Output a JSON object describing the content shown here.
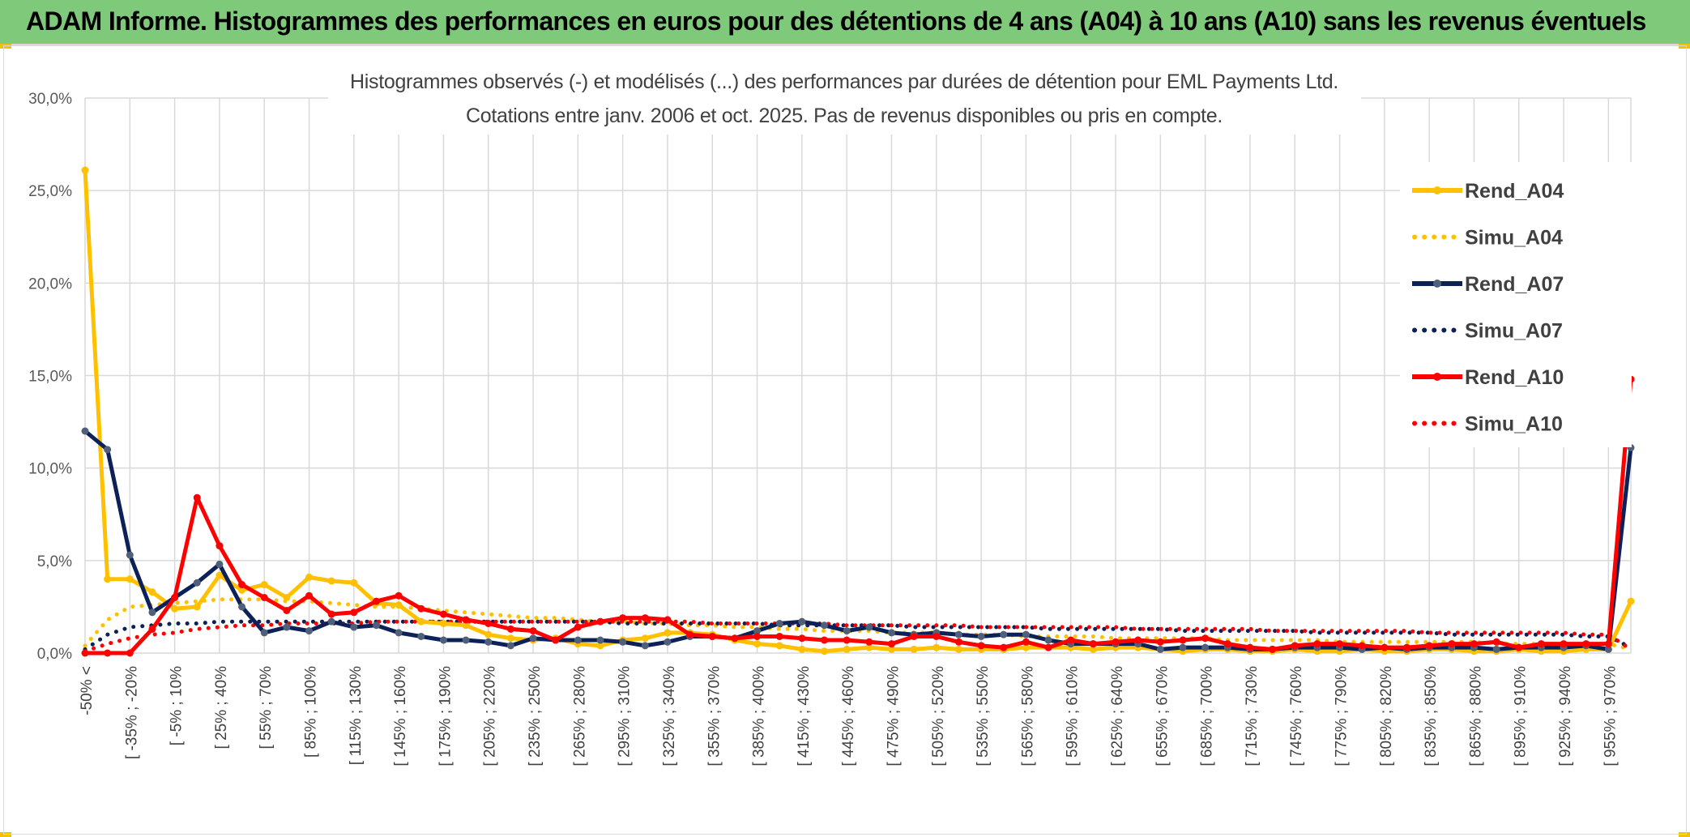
{
  "banner": {
    "title": "ADAM Informe. Histogrammes des performances en euros pour des détentions de 4 ans (A04) à 10 ans (A10) sans les revenus éventuels"
  },
  "chart_data": {
    "type": "line",
    "title": "Histogrammes observés (-) et modélisés (...) des performances par durées de détention pour EML Payments Ltd.",
    "subtitle": "Cotations entre janv. 2006 et oct. 2025. Pas de revenus disponibles ou pris en compte.",
    "xlabel": "",
    "ylabel": "",
    "ylim": [
      0,
      30
    ],
    "y_ticks": [
      "0,0%",
      "5,0%",
      "10,0%",
      "15,0%",
      "20,0%",
      "25,0%",
      "30,0%"
    ],
    "y_tick_values": [
      0,
      5,
      10,
      15,
      20,
      25,
      30
    ],
    "grid": true,
    "legend_position": "right",
    "category_count": 70,
    "x_tick_labels": [
      {
        "index": 0,
        "label": "-50% <"
      },
      {
        "index": 2,
        "label": "[ -35% ; -20%"
      },
      {
        "index": 4,
        "label": "[ -5% ; 10%"
      },
      {
        "index": 6,
        "label": "[ 25% ; 40%"
      },
      {
        "index": 8,
        "label": "[ 55% ; 70%"
      },
      {
        "index": 10,
        "label": "[ 85% ; 100%"
      },
      {
        "index": 12,
        "label": "[ 115% ; 130%"
      },
      {
        "index": 14,
        "label": "[ 145% ; 160%"
      },
      {
        "index": 16,
        "label": "[ 175% ; 190%"
      },
      {
        "index": 18,
        "label": "[ 205% ; 220%"
      },
      {
        "index": 20,
        "label": "[ 235% ; 250%"
      },
      {
        "index": 22,
        "label": "[ 265% ; 280%"
      },
      {
        "index": 24,
        "label": "[ 295% ; 310%"
      },
      {
        "index": 26,
        "label": "[ 325% ; 340%"
      },
      {
        "index": 28,
        "label": "[ 355% ; 370%"
      },
      {
        "index": 30,
        "label": "[ 385% ; 400%"
      },
      {
        "index": 32,
        "label": "[ 415% ; 430%"
      },
      {
        "index": 34,
        "label": "[ 445% ; 460%"
      },
      {
        "index": 36,
        "label": "[ 475% ; 490%"
      },
      {
        "index": 38,
        "label": "[ 505% ; 520%"
      },
      {
        "index": 40,
        "label": "[ 535% ; 550%"
      },
      {
        "index": 42,
        "label": "[ 565% ; 580%"
      },
      {
        "index": 44,
        "label": "[ 595% ; 610%"
      },
      {
        "index": 46,
        "label": "[ 625% ; 640%"
      },
      {
        "index": 48,
        "label": "[ 655% ; 670%"
      },
      {
        "index": 50,
        "label": "[ 685% ; 700%"
      },
      {
        "index": 52,
        "label": "[ 715% ; 730%"
      },
      {
        "index": 54,
        "label": "[ 745% ; 760%"
      },
      {
        "index": 56,
        "label": "[ 775% ; 790%"
      },
      {
        "index": 58,
        "label": "[ 805% ; 820%"
      },
      {
        "index": 60,
        "label": "[ 835% ; 850%"
      },
      {
        "index": 62,
        "label": "[ 865% ; 880%"
      },
      {
        "index": 64,
        "label": "[ 895% ; 910%"
      },
      {
        "index": 66,
        "label": "[ 925% ; 940%"
      },
      {
        "index": 68,
        "label": "[ 955% ; 970%"
      }
    ],
    "series": [
      {
        "name": "Rend_A04",
        "style": "solid",
        "color": "#ffc000",
        "values": [
          26.1,
          4.0,
          4.0,
          3.3,
          2.4,
          2.5,
          4.2,
          3.4,
          3.7,
          3.0,
          4.1,
          3.9,
          3.8,
          2.7,
          2.6,
          1.7,
          1.6,
          1.5,
          1.0,
          0.8,
          0.7,
          0.8,
          0.5,
          0.4,
          0.7,
          0.8,
          1.1,
          1.1,
          1.0,
          0.7,
          0.5,
          0.4,
          0.2,
          0.1,
          0.2,
          0.3,
          0.2,
          0.2,
          0.3,
          0.2,
          0.2,
          0.2,
          0.3,
          0.3,
          0.3,
          0.2,
          0.3,
          0.3,
          0.2,
          0.1,
          0.2,
          0.2,
          0.1,
          0.1,
          0.2,
          0.1,
          0.1,
          0.2,
          0.1,
          0.1,
          0.2,
          0.2,
          0.1,
          0.1,
          0.2,
          0.1,
          0.1,
          0.2,
          0.2,
          2.8
        ]
      },
      {
        "name": "Simu_A04",
        "style": "dotted",
        "color": "#ffc000",
        "values": [
          0.4,
          1.8,
          2.5,
          2.6,
          2.7,
          2.8,
          2.9,
          2.9,
          2.9,
          2.8,
          2.8,
          2.7,
          2.6,
          2.5,
          2.5,
          2.4,
          2.3,
          2.2,
          2.1,
          2.0,
          1.9,
          1.9,
          1.8,
          1.7,
          1.7,
          1.6,
          1.6,
          1.5,
          1.5,
          1.4,
          1.4,
          1.3,
          1.3,
          1.2,
          1.2,
          1.2,
          1.1,
          1.1,
          1.1,
          1.0,
          1.0,
          1.0,
          0.9,
          0.9,
          0.9,
          0.9,
          0.8,
          0.8,
          0.8,
          0.8,
          0.8,
          0.7,
          0.7,
          0.7,
          0.7,
          0.7,
          0.6,
          0.6,
          0.6,
          0.6,
          0.6,
          0.6,
          0.6,
          0.5,
          0.5,
          0.5,
          0.5,
          0.5,
          0.5,
          0.2
        ]
      },
      {
        "name": "Rend_A07",
        "style": "solid",
        "color": "#0b2157",
        "values": [
          12.0,
          11.0,
          5.3,
          2.2,
          3.0,
          3.8,
          4.8,
          2.5,
          1.1,
          1.4,
          1.2,
          1.7,
          1.4,
          1.5,
          1.1,
          0.9,
          0.7,
          0.7,
          0.6,
          0.4,
          0.8,
          0.7,
          0.7,
          0.7,
          0.6,
          0.4,
          0.6,
          0.9,
          0.9,
          0.8,
          1.2,
          1.6,
          1.7,
          1.5,
          1.2,
          1.4,
          1.1,
          1.0,
          1.1,
          1.0,
          0.9,
          1.0,
          1.0,
          0.7,
          0.5,
          0.5,
          0.5,
          0.5,
          0.2,
          0.3,
          0.3,
          0.3,
          0.2,
          0.2,
          0.3,
          0.3,
          0.3,
          0.2,
          0.3,
          0.2,
          0.3,
          0.3,
          0.3,
          0.2,
          0.3,
          0.3,
          0.3,
          0.4,
          0.2,
          11.1
        ]
      },
      {
        "name": "Simu_A07",
        "style": "dotted",
        "color": "#0b2157",
        "values": [
          0.2,
          1.0,
          1.4,
          1.5,
          1.6,
          1.6,
          1.7,
          1.7,
          1.7,
          1.7,
          1.7,
          1.7,
          1.7,
          1.7,
          1.7,
          1.7,
          1.7,
          1.7,
          1.7,
          1.7,
          1.7,
          1.7,
          1.7,
          1.7,
          1.6,
          1.6,
          1.6,
          1.6,
          1.6,
          1.6,
          1.6,
          1.5,
          1.5,
          1.5,
          1.5,
          1.5,
          1.5,
          1.4,
          1.4,
          1.4,
          1.4,
          1.4,
          1.4,
          1.3,
          1.3,
          1.3,
          1.3,
          1.3,
          1.3,
          1.2,
          1.2,
          1.2,
          1.2,
          1.2,
          1.2,
          1.1,
          1.1,
          1.1,
          1.1,
          1.1,
          1.1,
          1.0,
          1.0,
          1.0,
          1.0,
          1.0,
          1.0,
          0.9,
          0.9,
          0.3
        ]
      },
      {
        "name": "Rend_A10",
        "style": "solid",
        "color": "#ff0000",
        "values": [
          0.0,
          0.0,
          0.0,
          1.3,
          3.0,
          8.4,
          5.8,
          3.7,
          3.0,
          2.3,
          3.1,
          2.1,
          2.2,
          2.8,
          3.1,
          2.4,
          2.1,
          1.8,
          1.6,
          1.3,
          1.2,
          0.7,
          1.4,
          1.7,
          1.9,
          1.9,
          1.8,
          1.0,
          0.9,
          0.8,
          0.9,
          0.9,
          0.8,
          0.7,
          0.7,
          0.6,
          0.5,
          0.9,
          0.9,
          0.6,
          0.4,
          0.3,
          0.6,
          0.3,
          0.7,
          0.5,
          0.6,
          0.7,
          0.6,
          0.7,
          0.8,
          0.5,
          0.3,
          0.2,
          0.4,
          0.5,
          0.5,
          0.4,
          0.3,
          0.3,
          0.4,
          0.5,
          0.5,
          0.6,
          0.3,
          0.5,
          0.5,
          0.5,
          0.5,
          14.8
        ]
      },
      {
        "name": "Simu_A10",
        "style": "dotted",
        "color": "#ff0000",
        "values": [
          0.1,
          0.5,
          0.8,
          1.0,
          1.1,
          1.3,
          1.4,
          1.5,
          1.5,
          1.6,
          1.6,
          1.6,
          1.6,
          1.7,
          1.7,
          1.7,
          1.7,
          1.7,
          1.7,
          1.7,
          1.7,
          1.7,
          1.7,
          1.7,
          1.7,
          1.7,
          1.7,
          1.7,
          1.6,
          1.6,
          1.6,
          1.6,
          1.6,
          1.6,
          1.5,
          1.5,
          1.5,
          1.5,
          1.5,
          1.5,
          1.4,
          1.4,
          1.4,
          1.4,
          1.4,
          1.4,
          1.4,
          1.3,
          1.3,
          1.3,
          1.3,
          1.3,
          1.3,
          1.2,
          1.2,
          1.2,
          1.2,
          1.2,
          1.2,
          1.2,
          1.1,
          1.1,
          1.1,
          1.1,
          1.1,
          1.1,
          1.1,
          1.0,
          1.0,
          0.2
        ]
      }
    ]
  }
}
